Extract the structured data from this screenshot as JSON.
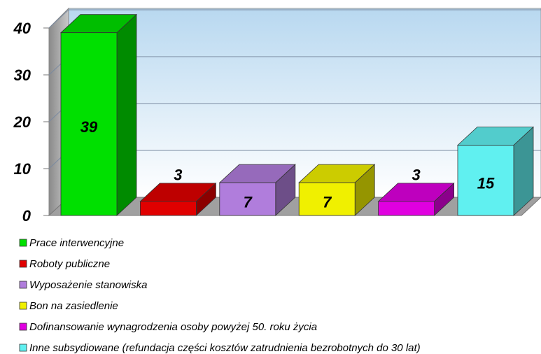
{
  "chart_data": {
    "type": "bar",
    "categories": [
      "Prace interwencyjne",
      "Roboty publiczne",
      "Wyposażenie stanowiska",
      "Bon na zasiedlenie",
      "Dofinansowanie wynagrodzenia osoby powyżej 50. roku życia",
      "Inne subsydiowane (refundacja części kosztów zatrudnienia bezrobotnych do 30 lat)"
    ],
    "values": [
      39,
      3,
      7,
      7,
      3,
      15
    ],
    "colors": [
      "#00e000",
      "#e00000",
      "#b07ddc",
      "#f0f000",
      "#e000e0",
      "#60f0f0"
    ],
    "ylim": [
      0,
      40
    ],
    "yticks": [
      0,
      10,
      20,
      30,
      40
    ],
    "grid": true,
    "legend": "bottom"
  }
}
